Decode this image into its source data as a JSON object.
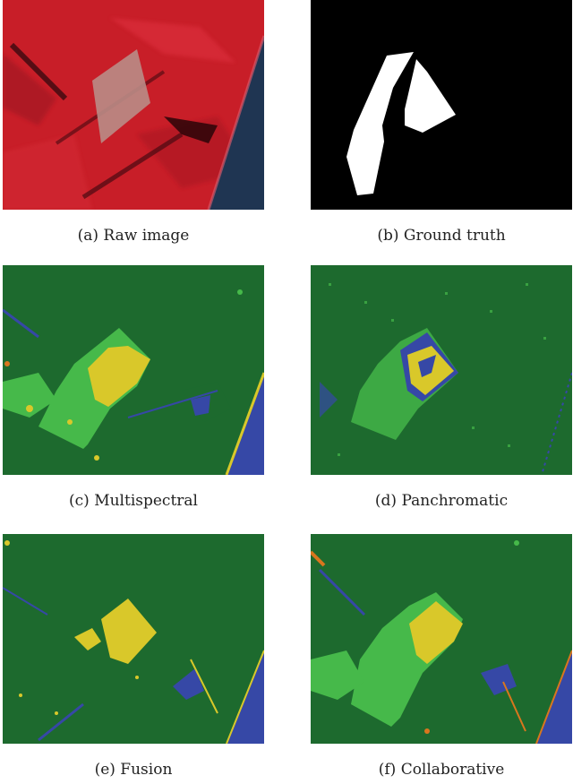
{
  "figure": {
    "panels": [
      {
        "id": "a",
        "caption": "(a)  Raw image"
      },
      {
        "id": "b",
        "caption": "(b)  Ground truth"
      },
      {
        "id": "c",
        "caption": "(c)  Multispectral"
      },
      {
        "id": "d",
        "caption": "(d)  Panchromatic"
      },
      {
        "id": "e",
        "caption": "(e)  Fusion"
      },
      {
        "id": "f",
        "caption": "(f)  Collaborative"
      }
    ],
    "colors": {
      "raw_red": "#c81e28",
      "raw_dark": "#7a0f18",
      "raw_field": "#b98c86",
      "sea": "#1f3552",
      "mask_bg": "#000000",
      "mask_fg": "#ffffff",
      "class_dark_green": "#1d6a2e",
      "class_light_green": "#46b94a",
      "class_yellow": "#d9c82a",
      "class_blue": "#3648a6",
      "class_orange": "#d9761e"
    }
  }
}
